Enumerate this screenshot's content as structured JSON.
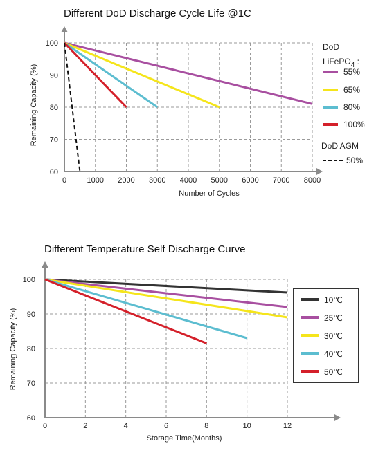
{
  "chart_data": [
    {
      "type": "line",
      "title": "Different DoD Discharge Cycle Life @1C",
      "xlabel": "Number of Cycles",
      "ylabel": "Remaining Capacity (%)",
      "xlim": [
        0,
        8000
      ],
      "ylim": [
        60,
        100
      ],
      "xticks": [
        "0",
        "1000",
        "2000",
        "3000",
        "4000",
        "5000",
        "6000",
        "7000",
        "8000"
      ],
      "yticks": [
        "60",
        "70",
        "80",
        "90",
        "100"
      ],
      "grid": true,
      "legend_position": "right",
      "legend_title_1": "DoD",
      "legend_title_2": "LiFePO",
      "legend_title_2_sub": "4",
      "legend_title_2_suffix": " :",
      "legend_title_3": "DoD AGM",
      "series": [
        {
          "name": "55%",
          "color": "#a84fa0",
          "dash": false,
          "x": [
            0,
            8000
          ],
          "y": [
            100,
            81
          ]
        },
        {
          "name": "65%",
          "color": "#f5e51b",
          "dash": false,
          "x": [
            0,
            5000
          ],
          "y": [
            100,
            80
          ]
        },
        {
          "name": "80%",
          "color": "#5cbdd0",
          "dash": false,
          "x": [
            0,
            3000
          ],
          "y": [
            100,
            80
          ]
        },
        {
          "name": "100%",
          "color": "#d4202a",
          "dash": false,
          "x": [
            0,
            2000
          ],
          "y": [
            100,
            80
          ]
        },
        {
          "name": "50%",
          "color": "#111111",
          "dash": true,
          "x": [
            0,
            500
          ],
          "y": [
            100,
            60
          ]
        }
      ]
    },
    {
      "type": "line",
      "title": "Different Temperature Self Discharge Curve",
      "xlabel": "Storage Time(Months)",
      "ylabel": "Remaining Capacity (%)",
      "xlim": [
        0,
        12
      ],
      "ylim": [
        60,
        100
      ],
      "xticks": [
        "0",
        "2",
        "4",
        "6",
        "8",
        "10",
        "12"
      ],
      "yticks": [
        "60",
        "70",
        "80",
        "90",
        "100"
      ],
      "grid": true,
      "legend_position": "right",
      "series": [
        {
          "name": "10℃",
          "color": "#333333",
          "dash": false,
          "x": [
            0,
            12
          ],
          "y": [
            100,
            96.2
          ]
        },
        {
          "name": "25℃",
          "color": "#a84fa0",
          "dash": false,
          "x": [
            0,
            12
          ],
          "y": [
            100,
            92
          ]
        },
        {
          "name": "30℃",
          "color": "#f5e51b",
          "dash": false,
          "x": [
            0,
            12
          ],
          "y": [
            100,
            89
          ]
        },
        {
          "name": "40℃",
          "color": "#5cbdd0",
          "dash": false,
          "x": [
            0,
            10
          ],
          "y": [
            100,
            83
          ]
        },
        {
          "name": "50℃",
          "color": "#d4202a",
          "dash": false,
          "x": [
            0,
            8
          ],
          "y": [
            100,
            81.5
          ]
        }
      ]
    }
  ]
}
